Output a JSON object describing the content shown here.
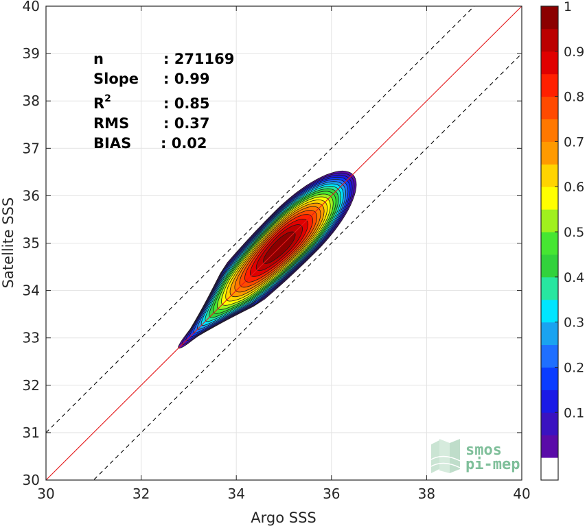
{
  "chart_data": {
    "type": "contour",
    "xlabel": "Argo SSS",
    "ylabel": "Satellite SSS",
    "xlim": [
      30,
      40
    ],
    "ylim": [
      30,
      40
    ],
    "xticks": [
      "30",
      "32",
      "34",
      "36",
      "38",
      "40"
    ],
    "yticks": [
      "30",
      "31",
      "32",
      "33",
      "34",
      "35",
      "36",
      "37",
      "38",
      "39",
      "40"
    ],
    "grid": true,
    "reference_lines": [
      {
        "name": "identity",
        "slope": 1,
        "intercept": 0,
        "color": "#e41a1c",
        "style": "solid"
      },
      {
        "name": "upper",
        "slope": 1,
        "intercept": 1,
        "color": "#000000",
        "style": "dashed"
      },
      {
        "name": "lower",
        "slope": 1,
        "intercept": -1,
        "color": "#000000",
        "style": "dashed"
      }
    ],
    "density_center": {
      "x": 35.25,
      "y": 35.25
    },
    "contour_levels": [
      0.05,
      0.1,
      0.15,
      0.2,
      0.25,
      0.3,
      0.35,
      0.4,
      0.45,
      0.5,
      0.55,
      0.6,
      0.65,
      0.7,
      0.75,
      0.8,
      0.85,
      0.9,
      0.95,
      1.0
    ],
    "stats": {
      "n": {
        "label": "n",
        "value": ": 271169"
      },
      "slope": {
        "label": "Slope",
        "value": ": 0.99"
      },
      "r2": {
        "label": "R",
        "sup": "2",
        "value": ": 0.85"
      },
      "rms": {
        "label": "RMS",
        "value": ": 0.37"
      },
      "bias": {
        "label": "BIAS",
        "value": ": 0.02"
      }
    },
    "colorbar": {
      "ticks": [
        "0.1",
        "0.2",
        "0.3",
        "0.4",
        "0.5",
        "0.6",
        "0.7",
        "0.8",
        "0.9",
        "1"
      ],
      "colors": [
        "#ffffff",
        "#5a0ba8",
        "#3a12c0",
        "#1a1ae6",
        "#0a3cff",
        "#1f6fff",
        "#1aa3f0",
        "#00e5ff",
        "#28e6a0",
        "#32d23c",
        "#46e632",
        "#a0f01e",
        "#ffff00",
        "#ffd400",
        "#ff9a00",
        "#ff7800",
        "#ff4a00",
        "#ff2000",
        "#e00000",
        "#bb0000",
        "#8b0000"
      ]
    },
    "logo": {
      "line1": "smos",
      "line2": "pi-mep"
    }
  }
}
